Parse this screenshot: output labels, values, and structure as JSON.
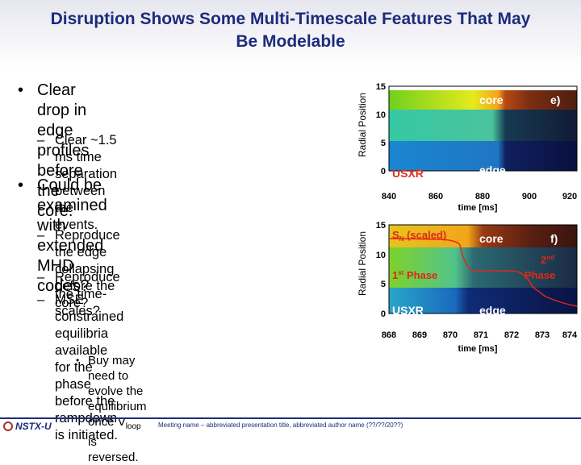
{
  "slide": {
    "title_line1": "Disruption Shows Some Multi-Timescale Features That May",
    "title_line2": "Be Modelable",
    "bullet1_line1": "Clear drop in edge profiles before",
    "bullet1_line2": "the core.",
    "sub1_line1": "Clear ~1.5 ms time separation",
    "sub1_line2": "between the events.",
    "bullet2_line1": "Could be examined with",
    "bullet2_line2": "extended MHD codes?",
    "sub2a_line1": "Reproduce the edge collapsing",
    "sub2a_line2": "before the core?",
    "sub2b": "Reproduce the time-scales?",
    "sub2c_line1": "MSE constrained equilibria available",
    "sub2c_line2": "for the phase before the rampdown",
    "sub2c_line3": "is initiated.",
    "subsub_line1": "Buy may need to evolve the",
    "subsub_line2_pre": "equilibrium once V",
    "subsub_line2_sub": "loop",
    "subsub_line2_post": " is reversed.",
    "bullet_glyph": "•",
    "dash_glyph": "–"
  },
  "footer": {
    "logo_text": "NSTX-U",
    "meeting_text": "Meeting name – abbreviated presentation title, abbreviated author name (??/??/20??)"
  },
  "chart_data": [
    {
      "type": "heatmap",
      "panel_label": "e)",
      "ylabel": "Radial Position",
      "xlabel": "time [ms]",
      "x_ticks": [
        "840",
        "860",
        "880",
        "900",
        "920"
      ],
      "y_ticks": [
        "0",
        "5",
        "10",
        "15"
      ],
      "xlim": [
        840,
        920
      ],
      "ylim": [
        0,
        15
      ],
      "annotations": [
        "core",
        "edge",
        "USXR"
      ]
    },
    {
      "type": "heatmap",
      "panel_label": "f)",
      "ylabel": "Radial Position",
      "xlabel": "time [ms]",
      "x_ticks": [
        "868",
        "869",
        "870",
        "871",
        "872",
        "873",
        "874"
      ],
      "y_ticks": [
        "0",
        "5",
        "10",
        "15"
      ],
      "xlim": [
        868,
        874
      ],
      "ylim": [
        0,
        15
      ],
      "annotations": [
        "core",
        "edge",
        "USXR"
      ],
      "sn_label": "S",
      "sn_sub": "N",
      "sn_suffix": " (scaled)",
      "phase1_num": "1",
      "phase1_sup": "st",
      "phase1_word": " Phase",
      "phase2_num": "2",
      "phase2_sup": "nd",
      "phase2_word": "Phase"
    }
  ]
}
